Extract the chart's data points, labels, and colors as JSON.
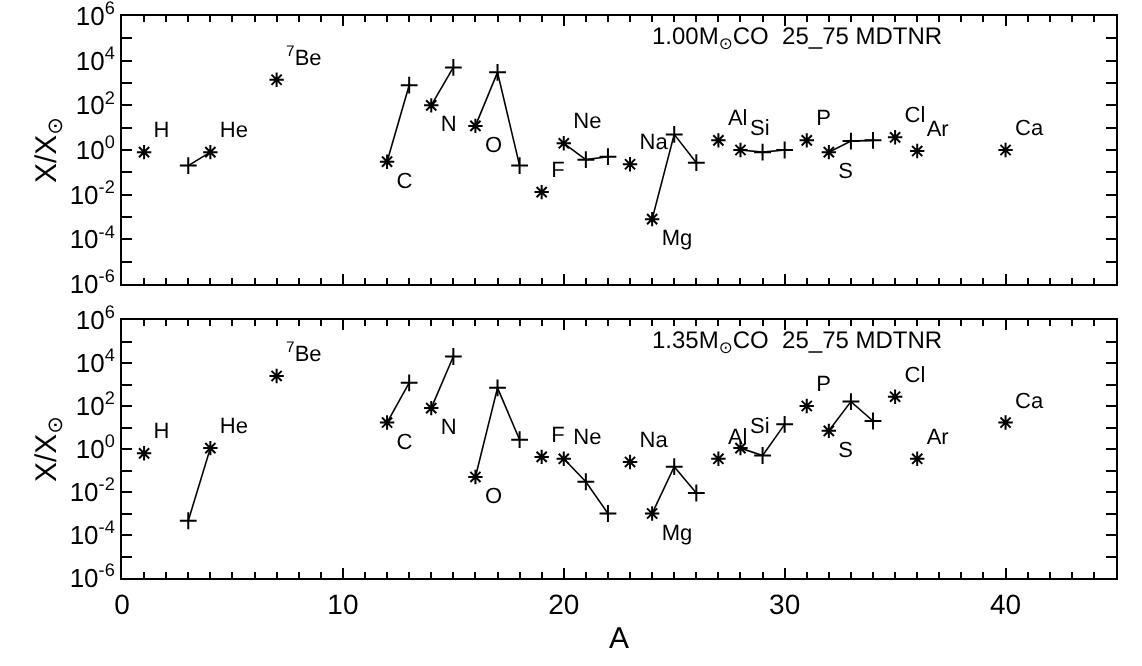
{
  "chart_data": [
    {
      "type": "line",
      "title": "1.00M$_{⊙}$CO  25_75 MDTNR",
      "ylabel": "X/X$_{⊙}$",
      "log": true,
      "marker": "cross",
      "line_style": "solid",
      "grid": false,
      "tick_labels": "y",
      "xlim": [
        0,
        45
      ],
      "xticks": [
        0,
        10,
        20,
        30,
        40
      ],
      "ylim": [
        1e-06,
        1000000.0
      ],
      "yticks": [
        {
          "value": 1e-06,
          "label": "10$^{-6}$"
        },
        {
          "value": 1e-05,
          "label": null
        },
        {
          "value": 0.0001,
          "label": "10$^{-4}$"
        },
        {
          "value": 0.001,
          "label": null
        },
        {
          "value": 0.01,
          "label": "10$^{-2}$"
        },
        {
          "value": 0.1,
          "label": null
        },
        {
          "value": 1,
          "label": "10$^{0}$"
        },
        {
          "value": 10,
          "label": null
        },
        {
          "value": 100,
          "label": "10$^{2}$"
        },
        {
          "value": 1000,
          "label": null
        },
        {
          "value": 10000,
          "label": "10$^{4}$"
        },
        {
          "value": 100000,
          "label": null
        },
        {
          "value": 1000000,
          "label": "10$^{6}$"
        }
      ],
      "series": [
        {
          "name": "H",
          "color": "#000000",
          "x": [
            1
          ],
          "values": [
            0.8
          ]
        },
        {
          "name": "He",
          "color": "#000000",
          "x": [
            4,
            3
          ],
          "values": [
            0.8,
            0.2
          ]
        },
        {
          "name": "$^{7}$Be",
          "color": "#000000",
          "x": [
            7
          ],
          "values": [
            1400
          ]
        },
        {
          "name": "C",
          "color": "#000000",
          "x": [
            12,
            13
          ],
          "values": [
            0.3,
            800
          ]
        },
        {
          "name": "N",
          "color": "#000000",
          "x": [
            14,
            15
          ],
          "values": [
            100,
            5000
          ]
        },
        {
          "name": "O",
          "color": "#000000",
          "x": [
            16,
            17,
            18
          ],
          "values": [
            12,
            3000,
            0.2
          ]
        },
        {
          "name": "F",
          "color": "#000000",
          "x": [
            19
          ],
          "values": [
            0.013
          ]
        },
        {
          "name": "Ne",
          "color": "#000000",
          "x": [
            20,
            21,
            22
          ],
          "values": [
            2,
            0.37,
            0.5
          ]
        },
        {
          "name": "Na",
          "color": "#000000",
          "x": [
            23
          ],
          "values": [
            0.23
          ]
        },
        {
          "name": "Mg",
          "color": "#000000",
          "x": [
            24,
            25,
            26
          ],
          "values": [
            0.0008,
            5,
            0.27
          ]
        },
        {
          "name": "Al",
          "color": "#000000",
          "x": [
            27
          ],
          "values": [
            2.7
          ]
        },
        {
          "name": "Si",
          "color": "#000000",
          "x": [
            28,
            29,
            30
          ],
          "values": [
            1,
            0.8,
            1
          ]
        },
        {
          "name": "P",
          "color": "#000000",
          "x": [
            31
          ],
          "values": [
            2.7
          ]
        },
        {
          "name": "S",
          "color": "#000000",
          "x": [
            32,
            33,
            34
          ],
          "values": [
            0.8,
            2.5,
            2.7
          ]
        },
        {
          "name": "Cl",
          "color": "#000000",
          "x": [
            35
          ],
          "values": [
            3.7
          ]
        },
        {
          "name": "Ar",
          "color": "#000000",
          "x": [
            36
          ],
          "values": [
            0.9
          ]
        },
        {
          "name": "Ca",
          "color": "#000000",
          "x": [
            40
          ],
          "values": [
            1
          ]
        }
      ]
    },
    {
      "type": "line",
      "title": "1.35M$_{⊙}$CO  25_75 MDTNR",
      "xlabel": "A",
      "ylabel": "X/X$_{⊙}$",
      "log": true,
      "marker": "cross",
      "line_style": "solid",
      "grid": false,
      "xlim": [
        0,
        45
      ],
      "xticks": [
        0,
        10,
        20,
        30,
        40
      ],
      "ylim": [
        1e-06,
        1000000.0
      ],
      "yticks": [
        {
          "value": 1e-06,
          "label": "10$^{-6}$"
        },
        {
          "value": 1e-05,
          "label": null
        },
        {
          "value": 0.0001,
          "label": "10$^{-4}$"
        },
        {
          "value": 0.001,
          "label": null
        },
        {
          "value": 0.01,
          "label": "10$^{-2}$"
        },
        {
          "value": 0.1,
          "label": null
        },
        {
          "value": 1,
          "label": "10$^{0}$"
        },
        {
          "value": 10,
          "label": null
        },
        {
          "value": 100,
          "label": "10$^{2}$"
        },
        {
          "value": 1000,
          "label": null
        },
        {
          "value": 10000,
          "label": "10$^{4}$"
        },
        {
          "value": 100000,
          "label": null
        },
        {
          "value": 1000000,
          "label": "10$^{6}$"
        }
      ],
      "series": [
        {
          "name": "H",
          "color": "#000000",
          "x": [
            1
          ],
          "values": [
            0.63
          ]
        },
        {
          "name": "He",
          "color": "#000000",
          "x": [
            4,
            3
          ],
          "values": [
            1.1,
            0.00046
          ]
        },
        {
          "name": "$^{7}$Be",
          "color": "#000000",
          "x": [
            7
          ],
          "values": [
            2500
          ]
        },
        {
          "name": "C",
          "color": "#000000",
          "x": [
            12,
            13
          ],
          "values": [
            17,
            1200
          ]
        },
        {
          "name": "N",
          "color": "#000000",
          "x": [
            14,
            15
          ],
          "values": [
            80,
            20000
          ]
        },
        {
          "name": "O",
          "color": "#000000",
          "x": [
            16,
            17,
            18
          ],
          "values": [
            0.05,
            700,
            2.7
          ]
        },
        {
          "name": "F",
          "color": "#000000",
          "x": [
            19
          ],
          "values": [
            0.43
          ]
        },
        {
          "name": "Ne",
          "color": "#000000",
          "x": [
            20,
            21,
            22
          ],
          "values": [
            0.35,
            0.03,
            0.001
          ]
        },
        {
          "name": "Na",
          "color": "#000000",
          "x": [
            23
          ],
          "values": [
            0.25
          ]
        },
        {
          "name": "Mg",
          "color": "#000000",
          "x": [
            24,
            25,
            26
          ],
          "values": [
            0.001,
            0.15,
            0.009
          ]
        },
        {
          "name": "Al",
          "color": "#000000",
          "x": [
            27
          ],
          "values": [
            0.35
          ]
        },
        {
          "name": "Si",
          "color": "#000000",
          "x": [
            28,
            29,
            30
          ],
          "values": [
            1.1,
            0.5,
            14
          ]
        },
        {
          "name": "P",
          "color": "#000000",
          "x": [
            31
          ],
          "values": [
            100
          ]
        },
        {
          "name": "S",
          "color": "#000000",
          "x": [
            32,
            33,
            34
          ],
          "values": [
            7,
            160,
            20
          ]
        },
        {
          "name": "Cl",
          "color": "#000000",
          "x": [
            35
          ],
          "values": [
            270
          ]
        },
        {
          "name": "Ar",
          "color": "#000000",
          "x": [
            36
          ],
          "values": [
            0.35
          ]
        },
        {
          "name": "Ca",
          "color": "#000000",
          "x": [
            40
          ],
          "values": [
            17
          ]
        }
      ]
    }
  ]
}
